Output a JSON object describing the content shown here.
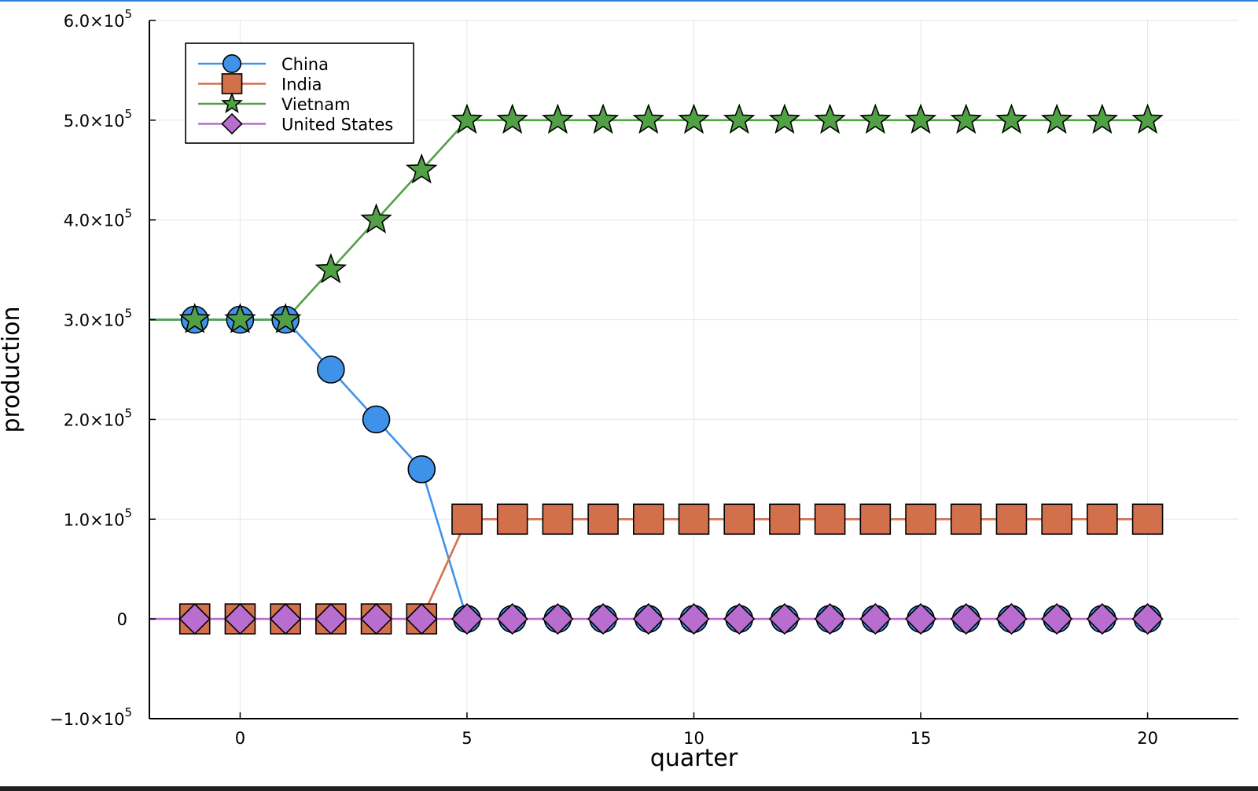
{
  "colors": {
    "China": "#3f92ea",
    "India": "#d2704c",
    "Vietnam": "#52a046",
    "United States": "#b96dce",
    "grid": "#e6e6e6",
    "axis": "#000000"
  },
  "chart_data": {
    "type": "line",
    "title": "",
    "xlabel": "quarter",
    "ylabel": "production",
    "xlim": [
      -2,
      22
    ],
    "ylim": [
      -100000,
      600000
    ],
    "x_ticks": [
      0,
      5,
      10,
      15,
      20
    ],
    "x_tick_labels": [
      "0",
      "5",
      "10",
      "15",
      "20"
    ],
    "y_ticks": [
      -100000,
      0,
      100000,
      200000,
      300000,
      400000,
      500000,
      600000
    ],
    "y_tick_labels": [
      {
        "mantissa": "−1.0×10",
        "exp": "5"
      },
      {
        "mantissa": "0",
        "exp": ""
      },
      {
        "mantissa": "1.0×10",
        "exp": "5"
      },
      {
        "mantissa": "2.0×10",
        "exp": "5"
      },
      {
        "mantissa": "3.0×10",
        "exp": "5"
      },
      {
        "mantissa": "4.0×10",
        "exp": "5"
      },
      {
        "mantissa": "5.0×10",
        "exp": "5"
      },
      {
        "mantissa": "6.0×10",
        "exp": "5"
      }
    ],
    "grid": true,
    "legend_position": "top-left",
    "x": [
      -1,
      0,
      1,
      2,
      3,
      4,
      5,
      6,
      7,
      8,
      9,
      10,
      11,
      12,
      13,
      14,
      15,
      16,
      17,
      18,
      19,
      20
    ],
    "series": [
      {
        "name": "China",
        "marker": "circle",
        "values": [
          300000,
          300000,
          300000,
          250000,
          200000,
          150000,
          0,
          0,
          0,
          0,
          0,
          0,
          0,
          0,
          0,
          0,
          0,
          0,
          0,
          0,
          0,
          0
        ]
      },
      {
        "name": "India",
        "marker": "square",
        "values": [
          0,
          0,
          0,
          0,
          0,
          0,
          100000,
          100000,
          100000,
          100000,
          100000,
          100000,
          100000,
          100000,
          100000,
          100000,
          100000,
          100000,
          100000,
          100000,
          100000,
          100000
        ]
      },
      {
        "name": "Vietnam",
        "marker": "star",
        "values": [
          300000,
          300000,
          300000,
          350000,
          400000,
          450000,
          500000,
          500000,
          500000,
          500000,
          500000,
          500000,
          500000,
          500000,
          500000,
          500000,
          500000,
          500000,
          500000,
          500000,
          500000,
          500000
        ]
      },
      {
        "name": "United States",
        "marker": "diamond",
        "values": [
          0,
          0,
          0,
          0,
          0,
          0,
          0,
          0,
          0,
          0,
          0,
          0,
          0,
          0,
          0,
          0,
          0,
          0,
          0,
          0,
          0,
          0
        ]
      }
    ]
  }
}
